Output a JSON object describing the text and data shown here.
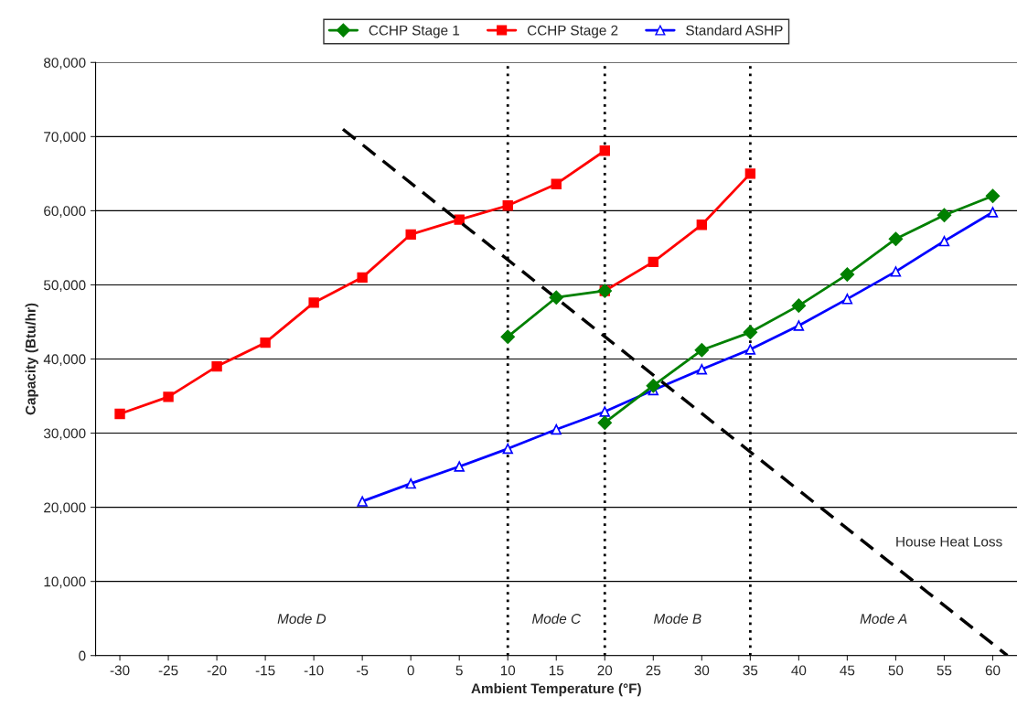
{
  "chart_data": {
    "type": "line",
    "xlabel": "Ambient Temperature (°F)",
    "ylabel": "Capacity (Btu/hr)",
    "xlim": [
      -32.5,
      62.5
    ],
    "xticks": [
      -30,
      -25,
      -20,
      -15,
      -10,
      -5,
      0,
      5,
      10,
      15,
      20,
      25,
      30,
      35,
      40,
      45,
      50,
      55,
      60
    ],
    "ylim": [
      0,
      80000
    ],
    "yticks": [
      {
        "value": 0,
        "label": "0"
      },
      {
        "value": 10000,
        "label": "10,000"
      },
      {
        "value": 20000,
        "label": "20,000"
      },
      {
        "value": 30000,
        "label": "30,000"
      },
      {
        "value": 40000,
        "label": "40,000"
      },
      {
        "value": 50000,
        "label": "50,000"
      },
      {
        "value": 60000,
        "label": "60,000"
      },
      {
        "value": 70000,
        "label": "70,000"
      },
      {
        "value": 80000,
        "label": "80,000"
      }
    ],
    "grid": "y",
    "legend": "top",
    "series": [
      {
        "name": "CCHP Stage 1",
        "color": "#008000",
        "marker": "diamond",
        "x": [
          10,
          15,
          20
        ],
        "values": [
          43000,
          48300,
          49200
        ]
      },
      {
        "color": "#008000",
        "marker": "diamond",
        "x": [
          20,
          25,
          30,
          35,
          40,
          45,
          50,
          55,
          60
        ],
        "values": [
          31400,
          36400,
          41200,
          43600,
          47200,
          51400,
          56200,
          59400,
          62000
        ]
      },
      {
        "name": "CCHP Stage 2",
        "color": "#ff0000",
        "marker": "square",
        "x": [
          -30,
          -25,
          -20,
          -15,
          -10,
          -5,
          0,
          5,
          10,
          15,
          20
        ],
        "values": [
          32600,
          34900,
          39000,
          42200,
          47600,
          51000,
          56800,
          58800,
          60700,
          63600,
          68100
        ]
      },
      {
        "color": "#ff0000",
        "marker": "square",
        "x": [
          20,
          25,
          30,
          35
        ],
        "values": [
          49200,
          53100,
          58100,
          65000
        ]
      },
      {
        "name": "Standard ASHP",
        "color": "#0000ff",
        "marker": "triangle",
        "x": [
          -5,
          0,
          5,
          10,
          15,
          20,
          25,
          30,
          35,
          40,
          45,
          50,
          55,
          60
        ],
        "values": [
          20800,
          23200,
          25500,
          27900,
          30500,
          32900,
          35800,
          38600,
          41300,
          44500,
          48100,
          51800,
          55900,
          59800
        ]
      },
      {
        "color": "#000000",
        "marker": "none",
        "line_style": "dashed",
        "x": [
          -7,
          61.5
        ],
        "values": [
          71000,
          0
        ]
      }
    ],
    "ref_lines": [
      {
        "axis": "x",
        "value": 10,
        "color": "#000000",
        "line_style": "dotted"
      },
      {
        "axis": "x",
        "value": 20,
        "color": "#000000",
        "line_style": "dotted"
      },
      {
        "axis": "x",
        "value": 35,
        "color": "#000000",
        "line_style": "dotted"
      }
    ],
    "annotations": [
      "House Heat Loss",
      "Mode D",
      "Mode C",
      "Mode B",
      "Mode A"
    ]
  }
}
